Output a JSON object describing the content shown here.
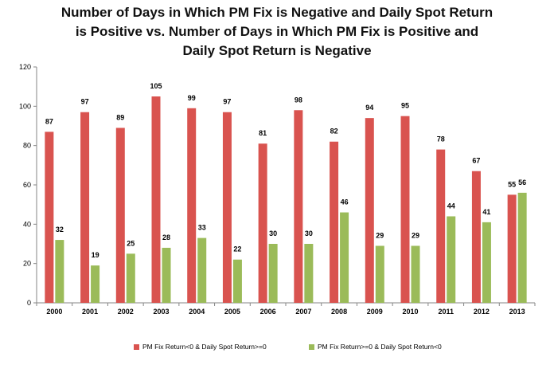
{
  "chart_data": {
    "type": "bar",
    "title_lines": [
      "Number of Days in Which PM Fix is Negative and Daily Spot Return",
      "is Positive vs. Number of Days in Which PM Fix is Positive and",
      "Daily Spot Return is Negative"
    ],
    "categories": [
      "2000",
      "2001",
      "2002",
      "2003",
      "2004",
      "2005",
      "2006",
      "2007",
      "2008",
      "2009",
      "2010",
      "2011",
      "2012",
      "2013"
    ],
    "series": [
      {
        "name": "PM Fix Return<0 & Daily Spot Return>=0",
        "color": "#d9534f",
        "values": [
          87,
          97,
          89,
          105,
          99,
          97,
          81,
          98,
          82,
          94,
          95,
          78,
          67,
          55
        ]
      },
      {
        "name": "PM Fix Return>=0 & Daily Spot Return<0",
        "color": "#9bbb59",
        "values": [
          32,
          19,
          25,
          28,
          33,
          22,
          30,
          30,
          46,
          29,
          29,
          44,
          41,
          56
        ]
      }
    ],
    "ylim": [
      0,
      120
    ],
    "yticks": [
      0,
      20,
      40,
      60,
      80,
      100,
      120
    ],
    "legend_position": "bottom",
    "grid": false
  }
}
